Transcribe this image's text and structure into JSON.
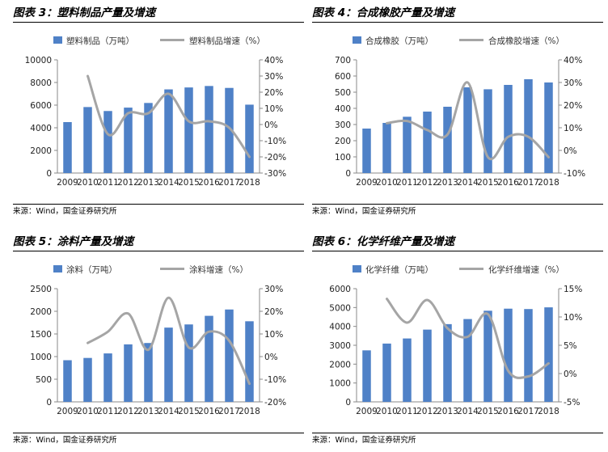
{
  "sources": [
    "来源：Wind，国金证券研究所",
    "来源：Wind，国金证券研究所",
    "来源：Wind，国金证券研究所",
    "来源：Wind，国金证券研究所"
  ],
  "colors": {
    "bar": "#4F81C7",
    "line": "#A5A5A5"
  },
  "chart_data": [
    {
      "type": "bar",
      "title": "图表 3：塑料制品产量及增速",
      "categories": [
        "2009",
        "2010",
        "2011",
        "2012",
        "2013",
        "2014",
        "2015",
        "2016",
        "2017",
        "2018"
      ],
      "series": [
        {
          "name": "塑料制品（万吨）",
          "type": "bar",
          "axis": "left",
          "values": [
            4500,
            5830,
            5480,
            5780,
            6190,
            7390,
            7560,
            7690,
            7520,
            6040
          ]
        },
        {
          "name": "塑料制品增速（%）",
          "type": "line",
          "axis": "right",
          "values": [
            null,
            30,
            -6,
            7,
            7,
            19,
            2,
            2,
            -2,
            -20
          ]
        }
      ],
      "ylim_left": [
        0,
        10000
      ],
      "yticks_left": [
        0,
        2000,
        4000,
        6000,
        8000,
        10000
      ],
      "ylim_right": [
        -30,
        40
      ],
      "yticks_right": [
        -30,
        -20,
        -10,
        0,
        10,
        20,
        30,
        40
      ],
      "ytick_suffix_right": "%",
      "legend": "top"
    },
    {
      "type": "bar",
      "title": "图表 4：合成橡胶产量及增速",
      "categories": [
        "2009",
        "2010",
        "2011",
        "2012",
        "2013",
        "2014",
        "2015",
        "2016",
        "2017",
        "2018"
      ],
      "series": [
        {
          "name": "合成橡胶（万吨）",
          "type": "bar",
          "axis": "left",
          "values": [
            275,
            310,
            348,
            380,
            410,
            530,
            518,
            545,
            580,
            560
          ]
        },
        {
          "name": "合成橡胶增速（%）",
          "type": "line",
          "axis": "right",
          "values": [
            null,
            12,
            13,
            9,
            7,
            30,
            -3,
            6,
            6,
            -3
          ]
        }
      ],
      "ylim_left": [
        0,
        700
      ],
      "yticks_left": [
        0,
        100,
        200,
        300,
        400,
        500,
        600,
        700
      ],
      "ylim_right": [
        -10,
        40
      ],
      "yticks_right": [
        -10,
        0,
        10,
        20,
        30,
        40
      ],
      "ytick_suffix_right": "%",
      "legend": "top"
    },
    {
      "type": "bar",
      "title": "图表 5：涂料产量及增速",
      "categories": [
        "2009",
        "2010",
        "2011",
        "2012",
        "2013",
        "2014",
        "2015",
        "2016",
        "2017",
        "2018"
      ],
      "series": [
        {
          "name": "涂料（万吨）",
          "type": "bar",
          "axis": "left",
          "values": [
            920,
            970,
            1070,
            1270,
            1300,
            1640,
            1710,
            1900,
            2040,
            1780
          ]
        },
        {
          "name": "涂料增速（%）",
          "type": "line",
          "axis": "right",
          "values": [
            null,
            6,
            11,
            19,
            3,
            26,
            4,
            11,
            7,
            -12
          ]
        }
      ],
      "ylim_left": [
        0,
        2500
      ],
      "yticks_left": [
        0,
        500,
        1000,
        1500,
        2000,
        2500
      ],
      "ylim_right": [
        -20,
        30
      ],
      "yticks_right": [
        -20,
        -10,
        0,
        10,
        20,
        30
      ],
      "ytick_suffix_right": "%",
      "legend": "top"
    },
    {
      "type": "bar",
      "title": "图表 6：化学纤维产量及增速",
      "categories": [
        "2009",
        "2010",
        "2011",
        "2012",
        "2013",
        "2014",
        "2015",
        "2016",
        "2017",
        "2018"
      ],
      "series": [
        {
          "name": "化学纤维（万吨）",
          "type": "bar",
          "axis": "left",
          "values": [
            2730,
            3090,
            3360,
            3830,
            4120,
            4390,
            4830,
            4940,
            4920,
            5010
          ]
        },
        {
          "name": "化学纤维增速（%）",
          "type": "line",
          "axis": "right",
          "values": [
            null,
            13.2,
            9,
            13,
            8,
            6.5,
            10.5,
            0.5,
            -0.5,
            1.8
          ]
        }
      ],
      "ylim_left": [
        0,
        6000
      ],
      "yticks_left": [
        0,
        1000,
        2000,
        3000,
        4000,
        5000,
        6000
      ],
      "ylim_right": [
        -5,
        15
      ],
      "yticks_right": [
        -5,
        0,
        5,
        10,
        15
      ],
      "ytick_suffix_right": "%",
      "legend": "top"
    }
  ]
}
